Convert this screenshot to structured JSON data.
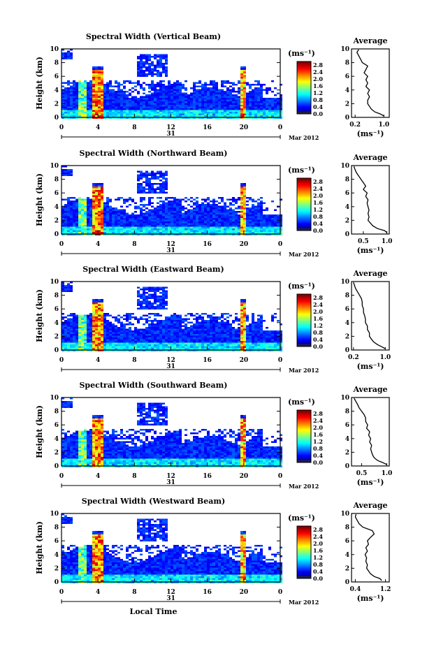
{
  "figure": {
    "date_label": "Mar 2012",
    "day_label": "31",
    "xlabel": "Local Time",
    "ylabel": "Height (km)",
    "colorbar_unit": "(ms⁻¹)",
    "avg_unit": "(ms⁻¹)",
    "avg_title": "Average"
  },
  "chart_data": [
    {
      "type": "heatmap",
      "title": "Spectral Width (Vertical Beam)",
      "xlabel": "",
      "ylabel": "Height (km)",
      "xlim": [
        0,
        24
      ],
      "ylim": [
        0,
        10
      ],
      "xticks": [
        "0",
        "4",
        "8",
        "12",
        "16",
        "20",
        "0"
      ],
      "yticks": [
        "0",
        "2",
        "4",
        "6",
        "8",
        "10"
      ],
      "colorbar": {
        "min": 0.0,
        "max": 3.0,
        "ticks": [
          "0.0",
          "0.4",
          "0.8",
          "1.2",
          "1.6",
          "2.0",
          "2.4",
          "2.8"
        ]
      },
      "average": {
        "xticks": [
          "0.2",
          "1.0"
        ],
        "xlim": [
          0.1,
          1.15
        ],
        "heights": [
          0.2,
          0.5,
          0.8,
          1.2,
          1.6,
          2.0,
          2.5,
          3.0,
          3.5,
          4.0,
          4.5,
          5.0,
          5.5,
          6.0,
          6.5,
          7.0,
          7.5,
          8.0,
          8.5,
          9.0,
          9.5,
          9.9
        ],
        "values": [
          1.0,
          0.9,
          0.75,
          0.65,
          0.6,
          0.55,
          0.55,
          0.6,
          0.55,
          0.6,
          0.5,
          0.55,
          0.5,
          0.55,
          0.45,
          0.5,
          0.55,
          0.4,
          0.35,
          0.3,
          0.25,
          0.3
        ]
      }
    },
    {
      "type": "heatmap",
      "title": "Spectral Width (Northward Beam)",
      "xlabel": "",
      "ylabel": "Height (km)",
      "xlim": [
        0,
        24
      ],
      "ylim": [
        0,
        10
      ],
      "xticks": [
        "0",
        "4",
        "8",
        "12",
        "16",
        "20",
        "0"
      ],
      "yticks": [
        "0",
        "2",
        "4",
        "6",
        "8",
        "10"
      ],
      "colorbar": {
        "min": 0.0,
        "max": 3.0,
        "ticks": [
          "0.0",
          "0.4",
          "0.8",
          "1.2",
          "1.6",
          "2.0",
          "2.4",
          "2.8"
        ]
      },
      "average": {
        "xticks": [
          "0.5",
          "1.0"
        ],
        "xlim": [
          0.25,
          1.05
        ],
        "heights": [
          0.2,
          0.5,
          0.8,
          1.2,
          1.6,
          2.0,
          2.5,
          3.0,
          3.5,
          4.0,
          4.5,
          5.0,
          5.5,
          6.0,
          6.5,
          7.0,
          7.5,
          8.0,
          8.5,
          9.0,
          9.5,
          9.9
        ],
        "values": [
          1.0,
          0.95,
          0.8,
          0.7,
          0.65,
          0.6,
          0.62,
          0.6,
          0.62,
          0.6,
          0.58,
          0.6,
          0.55,
          0.58,
          0.5,
          0.55,
          0.5,
          0.45,
          0.4,
          0.35,
          0.32,
          0.3
        ]
      }
    },
    {
      "type": "heatmap",
      "title": "Spectral Width (Eastward Beam)",
      "xlabel": "",
      "ylabel": "Height (km)",
      "xlim": [
        0,
        24
      ],
      "ylim": [
        0,
        10
      ],
      "xticks": [
        "0",
        "4",
        "8",
        "12",
        "16",
        "20",
        "0"
      ],
      "yticks": [
        "0",
        "2",
        "4",
        "6",
        "8",
        "10"
      ],
      "colorbar": {
        "min": 0.0,
        "max": 3.0,
        "ticks": [
          "0.0",
          "0.4",
          "0.8",
          "1.2",
          "1.6",
          "2.0",
          "2.4",
          "2.8"
        ]
      },
      "average": {
        "xticks": [
          "0.2",
          "1.0"
        ],
        "xlim": [
          0.15,
          1.1
        ],
        "heights": [
          0.2,
          0.5,
          0.8,
          1.2,
          1.6,
          2.0,
          2.5,
          3.0,
          3.5,
          4.0,
          4.5,
          5.0,
          5.5,
          6.0,
          6.5,
          7.0,
          7.5,
          8.0,
          8.5,
          9.0,
          9.5,
          9.9
        ],
        "values": [
          1.0,
          0.9,
          0.8,
          0.7,
          0.65,
          0.6,
          0.6,
          0.55,
          0.55,
          0.5,
          0.5,
          0.48,
          0.45,
          0.45,
          0.42,
          0.42,
          0.4,
          0.35,
          0.3,
          0.25,
          0.22,
          0.2
        ]
      }
    },
    {
      "type": "heatmap",
      "title": "Spectral Width (Southward Beam)",
      "xlabel": "",
      "ylabel": "Height (km)",
      "xlim": [
        0,
        24
      ],
      "ylim": [
        0,
        10
      ],
      "xticks": [
        "0",
        "4",
        "8",
        "12",
        "16",
        "20",
        "0"
      ],
      "yticks": [
        "0",
        "2",
        "4",
        "6",
        "8",
        "10"
      ],
      "colorbar": {
        "min": 0.0,
        "max": 3.0,
        "ticks": [
          "0.0",
          "0.4",
          "0.8",
          "1.2",
          "1.6",
          "2.0",
          "2.4",
          "2.8"
        ]
      },
      "average": {
        "xticks": [
          "0.5",
          "1.0"
        ],
        "xlim": [
          0.3,
          1.05
        ],
        "heights": [
          0.2,
          0.5,
          0.8,
          1.2,
          1.6,
          2.0,
          2.5,
          3.0,
          3.5,
          4.0,
          4.5,
          5.0,
          5.5,
          6.0,
          6.5,
          7.0,
          7.5,
          8.0,
          8.5,
          9.0,
          9.5,
          9.9
        ],
        "values": [
          1.0,
          0.92,
          0.82,
          0.75,
          0.72,
          0.7,
          0.68,
          0.7,
          0.66,
          0.68,
          0.64,
          0.66,
          0.6,
          0.62,
          0.58,
          0.58,
          0.55,
          0.5,
          0.45,
          0.42,
          0.38,
          0.35
        ]
      }
    },
    {
      "type": "heatmap",
      "title": "Spectral Width (Westward Beam)",
      "xlabel": "Local Time",
      "ylabel": "Height (km)",
      "xlim": [
        0,
        24
      ],
      "ylim": [
        0,
        10
      ],
      "xticks": [
        "0",
        "4",
        "8",
        "12",
        "16",
        "20",
        "0"
      ],
      "yticks": [
        "0",
        "2",
        "4",
        "6",
        "8",
        "10"
      ],
      "colorbar": {
        "min": 0.0,
        "max": 3.0,
        "ticks": [
          "0.0",
          "0.4",
          "0.8",
          "1.2",
          "1.6",
          "2.0",
          "2.4",
          "2.8"
        ]
      },
      "average": {
        "xticks": [
          "0.4",
          "1.2"
        ],
        "xlim": [
          0.3,
          1.3
        ],
        "heights": [
          0.2,
          0.5,
          0.8,
          1.2,
          1.6,
          2.0,
          2.5,
          3.0,
          3.5,
          4.0,
          4.5,
          5.0,
          5.5,
          6.0,
          6.5,
          7.0,
          7.5,
          8.0,
          8.5,
          9.0,
          9.5,
          9.9
        ],
        "values": [
          1.1,
          1.05,
          0.9,
          0.8,
          0.75,
          0.7,
          0.72,
          0.68,
          0.7,
          0.66,
          0.72,
          0.68,
          0.75,
          0.72,
          0.8,
          0.9,
          0.85,
          0.6,
          0.5,
          0.45,
          0.4,
          0.42
        ]
      }
    }
  ]
}
